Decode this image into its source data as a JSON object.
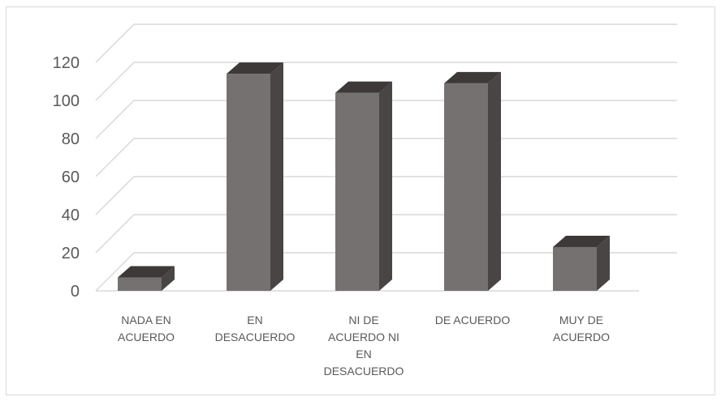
{
  "chart_data": {
    "type": "bar",
    "style": "3d-column",
    "categories": [
      [
        "NADA EN",
        "ACUERDO"
      ],
      [
        "EN",
        "DESACUERDO"
      ],
      [
        "NI DE",
        "ACUERDO NI",
        "EN",
        "DESACUERDO"
      ],
      [
        "DE ACUERDO"
      ],
      [
        "MUY DE",
        "ACUERDO"
      ]
    ],
    "values": [
      7,
      114,
      104,
      109,
      23
    ],
    "ylim": [
      0,
      120
    ],
    "yticks": [
      "0",
      "20",
      "40",
      "60",
      "80",
      "100",
      "120"
    ],
    "grid": true,
    "legend": "none",
    "colors": {
      "front": "#767171",
      "side": "#4a4545",
      "top": "#3d3939",
      "grid": "#d9d9d9"
    }
  }
}
